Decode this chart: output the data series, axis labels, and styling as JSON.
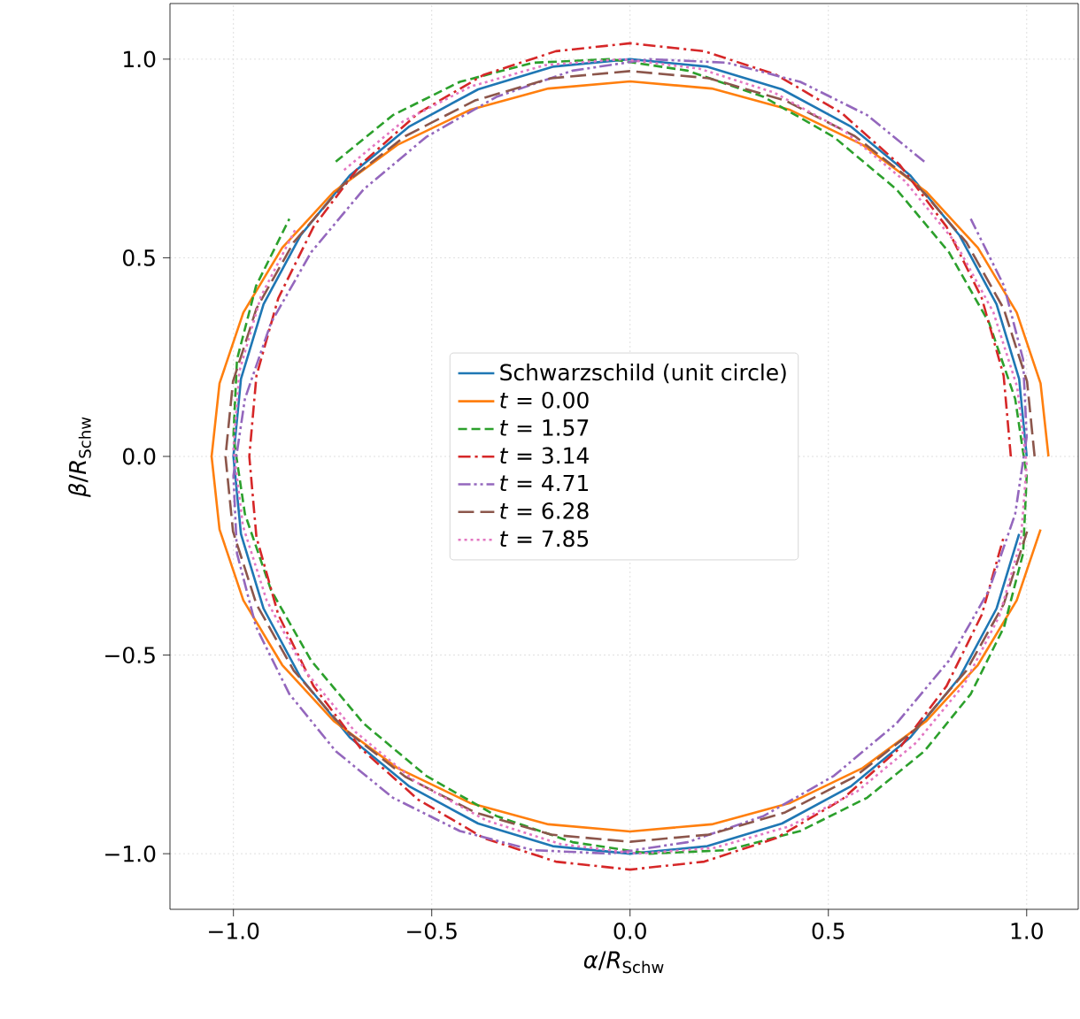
{
  "chart_data": {
    "type": "line",
    "xlabel": "*α*/*R*$_{Schw}$",
    "ylabel": "*β*/*R*$_{Schw}$",
    "xlim": [
      -1.16,
      1.13
    ],
    "ylim": [
      -1.14,
      1.14
    ],
    "xticks": [
      {
        "value": -1.0,
        "label": "−1.0"
      },
      {
        "value": -0.5,
        "label": "−0.5"
      },
      {
        "value": 0.0,
        "label": "0.0"
      },
      {
        "value": 0.5,
        "label": "0.5"
      },
      {
        "value": 1.0,
        "label": "1.0"
      }
    ],
    "yticks": [
      {
        "value": -1.0,
        "label": "−1.0"
      },
      {
        "value": -0.5,
        "label": "−0.5"
      },
      {
        "value": 0.0,
        "label": "0.0"
      },
      {
        "value": 0.5,
        "label": "0.5"
      },
      {
        "value": 1.0,
        "label": "1.0"
      }
    ],
    "grid": true,
    "legend": "center",
    "series": [
      {
        "name": "Schwarzschild (unit circle)",
        "color": "#1f77b4",
        "line_style": "solid",
        "x": [
          1,
          0.981,
          0.924,
          0.831,
          0.707,
          0.556,
          0.383,
          0.195,
          0,
          -0.195,
          -0.383,
          -0.556,
          -0.707,
          -0.831,
          -0.924,
          -0.981,
          -1,
          -0.981,
          -0.924,
          -0.831,
          -0.707,
          -0.556,
          -0.383,
          -0.195,
          0,
          0.195,
          0.383,
          0.556,
          0.707,
          0.831,
          0.924,
          0.981,
          1
        ],
        "values": [
          0,
          0.195,
          0.383,
          0.556,
          0.707,
          0.831,
          0.924,
          0.981,
          1,
          0.981,
          0.924,
          0.831,
          0.707,
          0.556,
          0.383,
          0.195,
          0,
          -0.195,
          -0.383,
          -0.556,
          -0.707,
          -0.831,
          -0.924,
          -0.981,
          -1,
          -0.981,
          -0.924,
          -0.831,
          -0.707,
          -0.556,
          -0.383,
          -0.195,
          0
        ]
      },
      {
        "name": "*t* = 0.00",
        "color": "#ff7f0e",
        "line_style": "solid",
        "x": [
          1.055,
          1.035,
          0.975,
          0.877,
          0.746,
          0.587,
          0.404,
          0.206,
          0,
          -0.206,
          -0.404,
          -0.587,
          -0.746,
          -0.877,
          -0.975,
          -1.035,
          -1.055,
          -1.035,
          -0.975,
          -0.877,
          -0.746,
          -0.587,
          -0.404,
          -0.206,
          0,
          0.206,
          0.404,
          0.587,
          0.746,
          0.877,
          0.975,
          1.035,
          1.055
        ],
        "values": [
          0,
          0.184,
          0.362,
          0.525,
          0.667,
          0.784,
          0.872,
          0.926,
          0.944,
          0.926,
          0.872,
          0.784,
          0.667,
          0.525,
          0.362,
          0.184,
          0,
          -0.184,
          -0.362,
          -0.525,
          -0.667,
          -0.784,
          -0.872,
          -0.926,
          -0.944,
          -0.926,
          -0.872,
          -0.784,
          -0.667,
          -0.525,
          -0.362,
          -0.184,
          0
        ]
      },
      {
        "name": "*t* = 1.57",
        "color": "#2ca02c",
        "line_style": "dashed",
        "x": [
          -0.742,
          -0.598,
          -0.429,
          -0.244,
          -0.049,
          0.145,
          0.337,
          0.514,
          0.672,
          0.804,
          0.905,
          0.971,
          1.0,
          0.991,
          0.943,
          0.859,
          0.742,
          0.598,
          0.429,
          0.244,
          0.049,
          -0.145,
          -0.337,
          -0.514,
          -0.672,
          -0.804,
          -0.905,
          -0.971,
          -1.0,
          -0.991,
          -0.943,
          -0.859,
          -0.742
        ],
        "values": [
          0.742,
          0.859,
          0.943,
          0.991,
          1.0,
          0.971,
          0.905,
          0.804,
          0.672,
          0.514,
          0.337,
          0.145,
          -0.049,
          -0.244,
          -0.429,
          -0.598,
          -0.742,
          -0.859,
          -0.943,
          -0.991,
          -1.0,
          -0.971,
          -0.905,
          -0.804,
          -0.672,
          -0.514,
          -0.337,
          -0.145,
          0.049,
          0.244,
          0.429,
          0.598,
          0.742
        ]
      },
      {
        "name": "*t* = 3.14",
        "color": "#d62728",
        "line_style": "dashdot",
        "x": [
          0.96,
          0.942,
          0.887,
          0.798,
          0.679,
          0.534,
          0.368,
          0.187,
          0,
          -0.187,
          -0.368,
          -0.534,
          -0.679,
          -0.798,
          -0.887,
          -0.942,
          -0.96,
          -0.942,
          -0.887,
          -0.798,
          -0.679,
          -0.534,
          -0.368,
          -0.187,
          0,
          0.187,
          0.368,
          0.534,
          0.679,
          0.798,
          0.887,
          0.942,
          0.96
        ],
        "values": [
          0,
          0.203,
          0.398,
          0.578,
          0.735,
          0.864,
          0.961,
          1.02,
          1.04,
          1.02,
          0.961,
          0.864,
          0.735,
          0.578,
          0.398,
          0.203,
          0,
          -0.203,
          -0.398,
          -0.578,
          -0.735,
          -0.864,
          -0.961,
          -1.02,
          -1.04,
          -1.02,
          -0.961,
          -0.864,
          -0.735,
          -0.578,
          -0.398,
          -0.203,
          0
        ]
      },
      {
        "name": "*t* = 4.71",
        "color": "#9467bd",
        "line_style": "dashdotdot",
        "x": [
          0.742,
          0.598,
          0.429,
          0.244,
          0.049,
          -0.145,
          -0.337,
          -0.514,
          -0.672,
          -0.804,
          -0.905,
          -0.971,
          -1.0,
          -0.991,
          -0.943,
          -0.859,
          -0.742,
          -0.598,
          -0.429,
          -0.244,
          -0.049,
          0.145,
          0.337,
          0.514,
          0.672,
          0.804,
          0.905,
          0.971,
          1.0,
          0.991,
          0.943,
          0.859,
          0.742
        ],
        "values": [
          0.742,
          0.859,
          0.943,
          0.991,
          1.0,
          0.971,
          0.905,
          0.804,
          0.672,
          0.514,
          0.337,
          0.145,
          -0.049,
          -0.244,
          -0.429,
          -0.598,
          -0.742,
          -0.859,
          -0.943,
          -0.991,
          -1.0,
          -0.971,
          -0.905,
          -0.804,
          -0.672,
          -0.514,
          -0.337,
          -0.145,
          0.049,
          0.244,
          0.429,
          0.598,
          0.742
        ]
      },
      {
        "name": "*t* = 6.28",
        "color": "#8c564b",
        "line_style": "longdashed",
        "x": [
          1.02,
          1.001,
          0.942,
          0.848,
          0.721,
          0.567,
          0.391,
          0.199,
          0,
          -0.199,
          -0.391,
          -0.567,
          -0.721,
          -0.848,
          -0.942,
          -1.001,
          -1.02,
          -1.001,
          -0.942,
          -0.848,
          -0.721,
          -0.567,
          -0.391,
          -0.199,
          0,
          0.199,
          0.391,
          0.567,
          0.721,
          0.848,
          0.942,
          1.001,
          1.02
        ],
        "values": [
          0,
          0.189,
          0.372,
          0.539,
          0.686,
          0.806,
          0.896,
          0.952,
          0.97,
          0.952,
          0.896,
          0.806,
          0.686,
          0.539,
          0.372,
          0.189,
          0,
          -0.189,
          -0.372,
          -0.539,
          -0.686,
          -0.806,
          -0.896,
          -0.952,
          -0.97,
          -0.952,
          -0.896,
          -0.806,
          -0.686,
          -0.539,
          -0.372,
          -0.189,
          0
        ]
      },
      {
        "name": "*t* = 7.85",
        "color": "#e377c2",
        "line_style": "dotted",
        "x": [
          -0.721,
          -0.573,
          -0.402,
          -0.214,
          -0.02,
          0.175,
          0.363,
          0.539,
          0.693,
          0.82,
          0.916,
          0.976,
          1.0,
          0.985,
          0.931,
          0.843,
          0.721,
          0.573,
          0.402,
          0.214,
          0.02,
          -0.175,
          -0.363,
          -0.539,
          -0.693,
          -0.82,
          -0.916,
          -0.976,
          -1.0,
          -0.985,
          -0.931,
          -0.843,
          -0.721
        ],
        "values": [
          0.721,
          0.843,
          0.931,
          0.985,
          1.0,
          0.976,
          0.916,
          0.82,
          0.693,
          0.539,
          0.363,
          0.175,
          -0.02,
          -0.214,
          -0.402,
          -0.573,
          -0.721,
          -0.843,
          -0.931,
          -0.985,
          -1.0,
          -0.976,
          -0.916,
          -0.82,
          -0.693,
          -0.539,
          -0.363,
          -0.175,
          0.02,
          0.214,
          0.402,
          0.573,
          0.721
        ]
      }
    ]
  }
}
